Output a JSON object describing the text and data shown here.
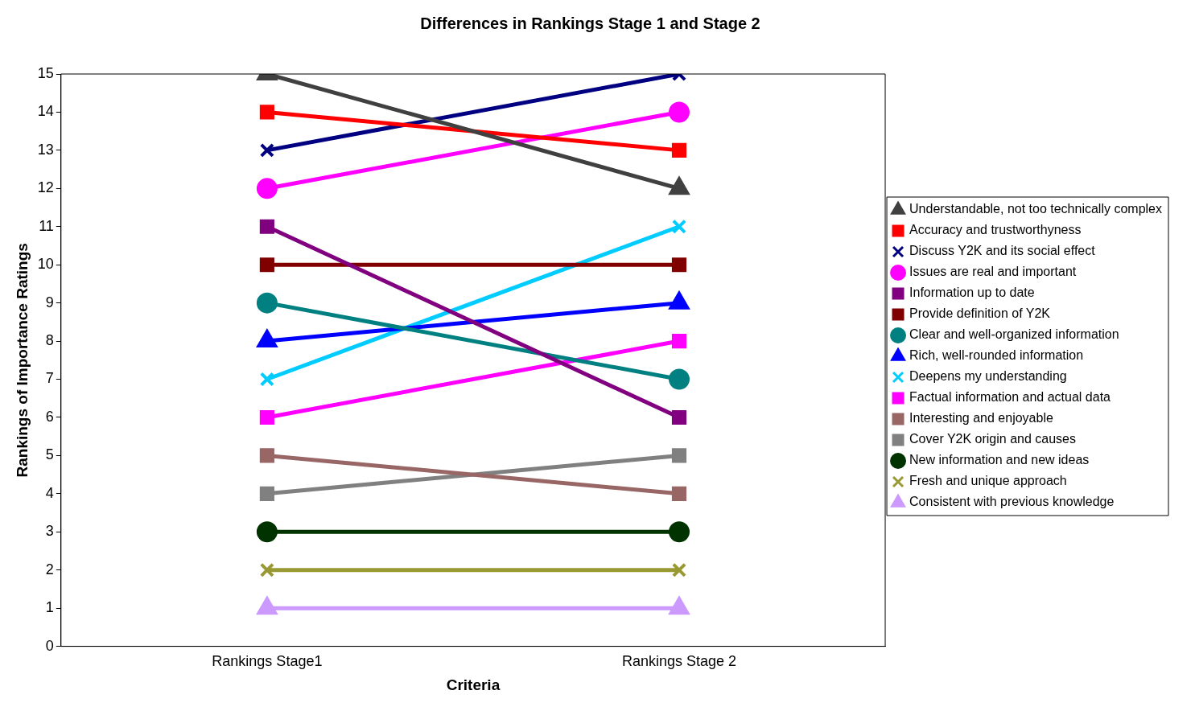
{
  "chart_data": {
    "type": "line",
    "title": "Differences in Rankings Stage 1 and Stage 2",
    "xlabel": "Criteria",
    "ylabel": "Rankings of Importance Ratings",
    "categories": [
      "Rankings Stage1",
      "Rankings Stage 2"
    ],
    "ylim": [
      0,
      15
    ],
    "yticks": [
      0,
      1,
      2,
      3,
      4,
      5,
      6,
      7,
      8,
      9,
      10,
      11,
      12,
      13,
      14,
      15
    ],
    "grid": false,
    "legend": "right",
    "series": [
      {
        "name": "Understandable, not too technically complex",
        "color": "#404040",
        "marker": "triangle",
        "values": [
          15,
          12
        ]
      },
      {
        "name": "Accuracy and trustworthyness",
        "color": "#ff0000",
        "marker": "square",
        "values": [
          14,
          13
        ]
      },
      {
        "name": "Discuss Y2K and its social effect",
        "color": "#000080",
        "marker": "cross",
        "values": [
          13,
          15
        ]
      },
      {
        "name": "Issues are real and important",
        "color": "#ff00ff",
        "marker": "circle",
        "values": [
          12,
          14
        ]
      },
      {
        "name": "Information up to date",
        "color": "#800080",
        "marker": "square",
        "values": [
          11,
          6
        ]
      },
      {
        "name": "Provide definition of Y2K",
        "color": "#800000",
        "marker": "square",
        "values": [
          10,
          10
        ]
      },
      {
        "name": "Clear and well-organized information",
        "color": "#008080",
        "marker": "circle",
        "values": [
          9,
          7
        ]
      },
      {
        "name": "Rich, well-rounded information",
        "color": "#0000ff",
        "marker": "triangle",
        "values": [
          8,
          9
        ]
      },
      {
        "name": "Deepens my understanding",
        "color": "#00ccff",
        "marker": "cross",
        "values": [
          7,
          11
        ]
      },
      {
        "name": "Factual information and actual data",
        "color": "#ff00ff",
        "marker": "square",
        "values": [
          6,
          8
        ]
      },
      {
        "name": "Interesting and enjoyable",
        "color": "#996666",
        "marker": "square",
        "values": [
          5,
          4
        ]
      },
      {
        "name": "Cover Y2K origin and causes",
        "color": "#808080",
        "marker": "square",
        "values": [
          4,
          5
        ]
      },
      {
        "name": "New information and new ideas",
        "color": "#003300",
        "marker": "circle",
        "values": [
          3,
          3
        ]
      },
      {
        "name": "Fresh and unique approach",
        "color": "#999933",
        "marker": "cross",
        "values": [
          2,
          2
        ]
      },
      {
        "name": "Consistent with previous knowledge",
        "color": "#cc99ff",
        "marker": "triangle",
        "values": [
          1,
          1
        ]
      }
    ]
  }
}
